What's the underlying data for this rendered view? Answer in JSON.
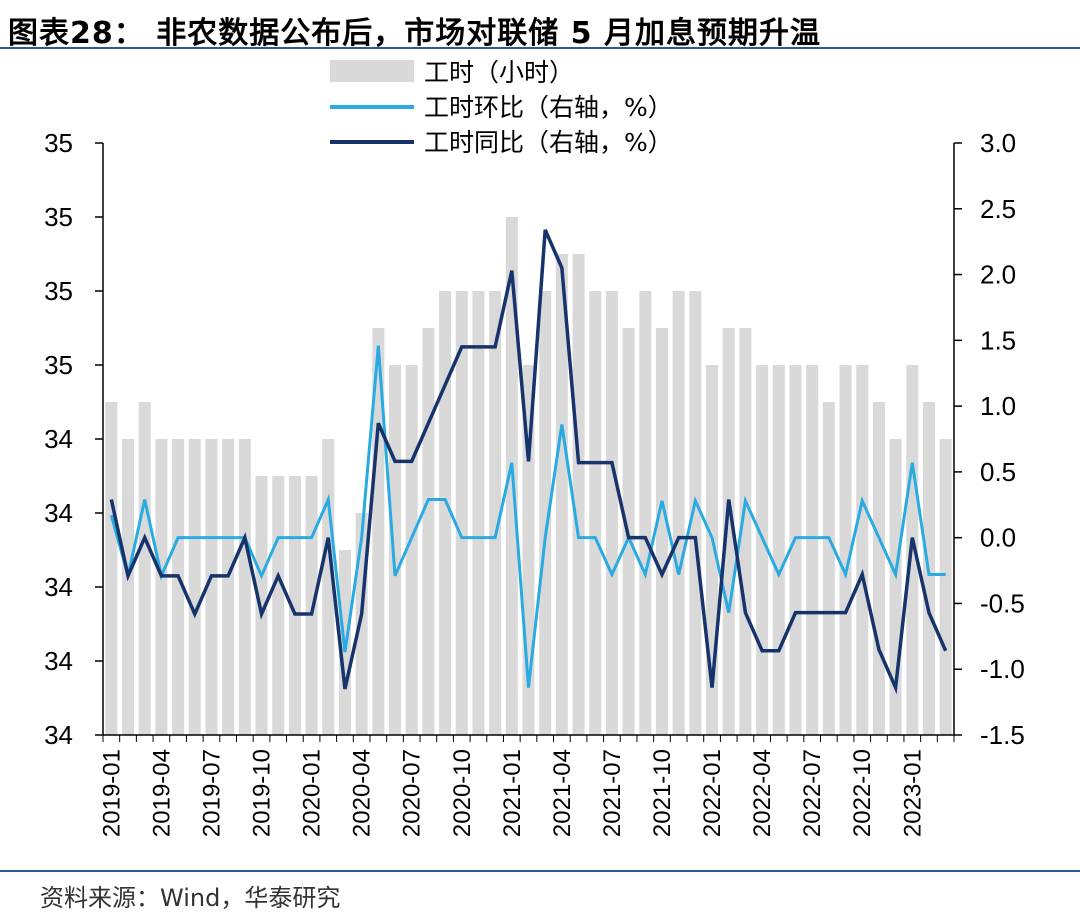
{
  "header": {
    "title": "图表28：  非农数据公布后，市场对联储 5 月加息预期升温"
  },
  "footer": {
    "source": "资料来源：Wind，华泰研究"
  },
  "colors": {
    "bars": "#d9d9d9",
    "mom_line": "#29abe2",
    "yoy_line": "#16346b",
    "rule": "#2e5a8c"
  },
  "chart_data": {
    "type": "bar+line",
    "x": [
      "2019-01",
      "2019-02",
      "2019-03",
      "2019-04",
      "2019-05",
      "2019-06",
      "2019-07",
      "2019-08",
      "2019-09",
      "2019-10",
      "2019-11",
      "2019-12",
      "2020-01",
      "2020-02",
      "2020-03",
      "2020-04",
      "2020-05",
      "2020-06",
      "2020-07",
      "2020-08",
      "2020-09",
      "2020-10",
      "2020-11",
      "2020-12",
      "2021-01",
      "2021-02",
      "2021-03",
      "2021-04",
      "2021-05",
      "2021-06",
      "2021-07",
      "2021-08",
      "2021-09",
      "2021-10",
      "2021-11",
      "2021-12",
      "2022-01",
      "2022-02",
      "2022-03",
      "2022-04",
      "2022-05",
      "2022-06",
      "2022-07",
      "2022-08",
      "2022-09",
      "2022-10",
      "2022-11",
      "2022-12",
      "2023-01",
      "2023-02",
      "2023-03"
    ],
    "x_tick_labels": [
      "2019-01",
      "2019-04",
      "2019-07",
      "2019-10",
      "2020-01",
      "2020-04",
      "2020-07",
      "2020-10",
      "2021-01",
      "2021-04",
      "2021-07",
      "2021-10",
      "2022-01",
      "2022-04",
      "2022-07",
      "2022-10",
      "2023-01"
    ],
    "left_axis": {
      "ylim": [
        34.0,
        35.6
      ],
      "tick_values": [
        34.0,
        34.2,
        34.4,
        34.6,
        34.8,
        35.0,
        35.2,
        35.4,
        35.6
      ],
      "tick_labels": [
        "34",
        "34",
        "34",
        "34",
        "34",
        "35",
        "35",
        "35",
        "35"
      ]
    },
    "right_axis": {
      "ylim": [
        -1.5,
        3.0
      ],
      "tick_values": [
        -1.5,
        -1.0,
        -0.5,
        0.0,
        0.5,
        1.0,
        1.5,
        2.0,
        2.5,
        3.0
      ],
      "tick_labels": [
        "-1.5",
        "-1.0",
        "-0.5",
        "0.0",
        "0.5",
        "1.0",
        "1.5",
        "2.0",
        "2.5",
        "3.0"
      ]
    },
    "series": [
      {
        "name": "工时（小时）",
        "kind": "bar",
        "axis": "left",
        "values": [
          34.9,
          34.8,
          34.9,
          34.8,
          34.8,
          34.8,
          34.8,
          34.8,
          34.8,
          34.7,
          34.7,
          34.7,
          34.7,
          34.8,
          34.5,
          34.6,
          35.1,
          35.0,
          35.0,
          35.1,
          35.2,
          35.2,
          35.2,
          35.2,
          35.4,
          35.0,
          35.2,
          35.3,
          35.3,
          35.2,
          35.2,
          35.1,
          35.2,
          35.1,
          35.2,
          35.2,
          35.0,
          35.1,
          35.1,
          35.0,
          35.0,
          35.0,
          35.0,
          34.9,
          35.0,
          35.0,
          34.9,
          34.8,
          35.0,
          34.9,
          34.8
        ]
      },
      {
        "name": "工时环比（右轴，%）",
        "kind": "line",
        "axis": "right",
        "values": [
          0.17,
          -0.29,
          0.29,
          -0.29,
          0.0,
          0.0,
          0.0,
          0.0,
          0.0,
          -0.29,
          0.0,
          0.0,
          0.0,
          0.29,
          -0.87,
          0.0,
          1.46,
          -0.29,
          0.0,
          0.29,
          0.29,
          0.0,
          0.0,
          0.0,
          0.57,
          -1.14,
          0.0,
          0.86,
          0.0,
          0.0,
          -0.28,
          0.0,
          -0.28,
          0.28,
          -0.28,
          0.28,
          0.0,
          -0.57,
          0.28,
          0.0,
          -0.28,
          0.0,
          0.0,
          0.0,
          -0.28,
          0.28,
          0.0,
          -0.28,
          0.57,
          -0.28,
          -0.28
        ]
      },
      {
        "name": "工时同比（右轴，%）",
        "kind": "line",
        "axis": "right",
        "values": [
          0.29,
          -0.29,
          0.0,
          -0.29,
          -0.29,
          -0.58,
          -0.29,
          -0.29,
          0.0,
          -0.58,
          -0.29,
          -0.58,
          -0.58,
          0.0,
          -1.15,
          -0.58,
          0.87,
          0.58,
          0.58,
          0.87,
          1.16,
          1.45,
          1.45,
          1.45,
          2.03,
          0.58,
          2.34,
          2.05,
          0.57,
          0.57,
          0.57,
          0.0,
          0.0,
          -0.28,
          0.0,
          0.0,
          -1.14,
          0.29,
          -0.57,
          -0.86,
          -0.86,
          -0.57,
          -0.57,
          -0.57,
          -0.57,
          -0.28,
          -0.85,
          -1.14,
          0.0,
          -0.57,
          -0.86
        ]
      }
    ]
  }
}
